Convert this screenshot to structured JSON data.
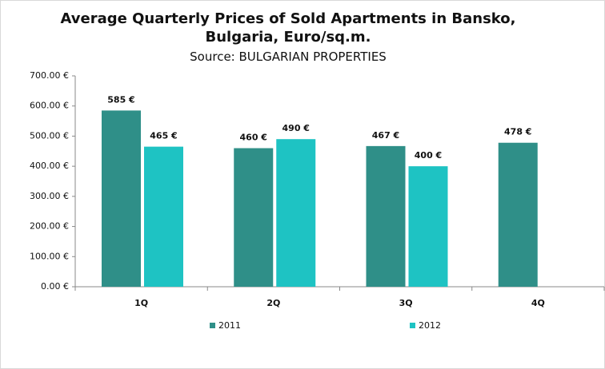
{
  "chart_data": {
    "type": "bar",
    "title": "Average Quarterly Prices of Sold Apartments in Bansko, Bulgaria, Euro/sq.m.",
    "subtitle": "Source: BULGARIAN PROPERTIES",
    "categories": [
      "1Q",
      "2Q",
      "3Q",
      "4Q"
    ],
    "series": [
      {
        "name": "2011",
        "color": "#2f8f88",
        "values": [
          585,
          460,
          467,
          478
        ],
        "value_labels": [
          "585 €",
          "460 €",
          "467 €",
          "478 €"
        ]
      },
      {
        "name": "2012",
        "color": "#1ec3c3",
        "values": [
          465,
          490,
          400,
          null
        ],
        "value_labels": [
          "465 €",
          "490 €",
          "400 €",
          null
        ]
      }
    ],
    "ylim": [
      0,
      700
    ],
    "yticks": [
      {
        "value": 0,
        "label": "0.00 €"
      },
      {
        "value": 100,
        "label": "100.00 €"
      },
      {
        "value": 200,
        "label": "200.00 €"
      },
      {
        "value": 300,
        "label": "300.00 €"
      },
      {
        "value": 400,
        "label": "400.00 €"
      },
      {
        "value": 500,
        "label": "500.00 €"
      },
      {
        "value": 600,
        "label": "600.00 €"
      },
      {
        "value": 700,
        "label": "700.00 €"
      }
    ],
    "legend": "bottom"
  }
}
